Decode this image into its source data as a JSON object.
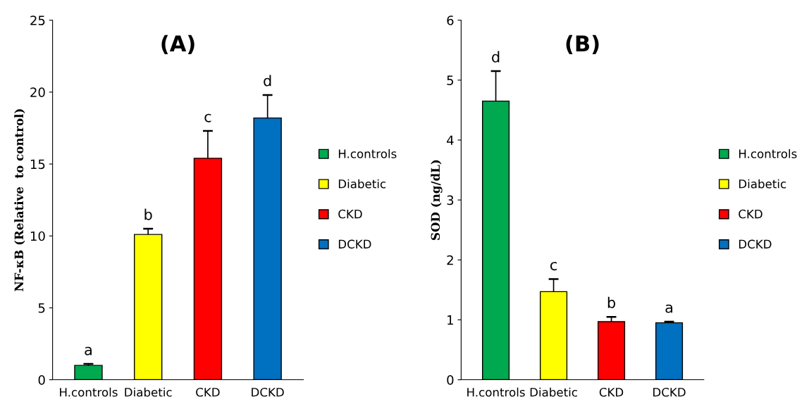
{
  "chart_data": [
    {
      "type": "bar",
      "stacked": true,
      "title": "(A)",
      "ylabel": "NF-κB (Relative  to control)",
      "categories": [
        "H.controls",
        "Diabetic",
        "CKD",
        "DCKD"
      ],
      "series": [
        {
          "name": "H.controls",
          "color": "#00a84f",
          "values": [
            1.0,
            null,
            null,
            null
          ],
          "errors": [
            0.1,
            null,
            null,
            null
          ]
        },
        {
          "name": "Diabetic",
          "color": "#ffff00",
          "values": [
            null,
            10.1,
            null,
            null
          ],
          "errors": [
            null,
            0.4,
            null,
            null
          ]
        },
        {
          "name": "CKD",
          "color": "#ff0000",
          "values": [
            null,
            null,
            15.4,
            null
          ],
          "errors": [
            null,
            null,
            1.9,
            null
          ]
        },
        {
          "name": "DCKD",
          "color": "#0070c0",
          "values": [
            null,
            null,
            null,
            18.2
          ],
          "errors": [
            null,
            null,
            null,
            1.6
          ]
        }
      ],
      "ylim": [
        0,
        25
      ],
      "yticks": [
        0,
        5,
        10,
        15,
        20,
        25
      ],
      "legend": "right",
      "annotations": [
        {
          "text": "a",
          "x": "H.controls",
          "y": 1.0
        },
        {
          "text": "b",
          "x": "Diabetic",
          "y": 10.1
        },
        {
          "text": "c",
          "x": "CKD",
          "y": 15.4
        },
        {
          "text": "d",
          "x": "DCKD",
          "y": 18.2
        }
      ]
    },
    {
      "type": "bar",
      "stacked": true,
      "title": "(B)",
      "ylabel": "SOD (ng/dL)",
      "categories": [
        "H.controls",
        "Diabetic",
        "CKD",
        "DCKD"
      ],
      "series": [
        {
          "name": "H.controls",
          "color": "#00a84f",
          "values": [
            4.65,
            null,
            null,
            null
          ],
          "errors": [
            0.5,
            null,
            null,
            null
          ]
        },
        {
          "name": "Diabetic",
          "color": "#ffff00",
          "values": [
            null,
            1.47,
            null,
            null
          ],
          "errors": [
            null,
            0.21,
            null,
            null
          ]
        },
        {
          "name": "CKD",
          "color": "#ff0000",
          "values": [
            null,
            null,
            0.97,
            null
          ],
          "errors": [
            null,
            null,
            0.08,
            null
          ]
        },
        {
          "name": "DCKD",
          "color": "#0070c0",
          "values": [
            null,
            null,
            null,
            0.95
          ],
          "errors": [
            null,
            null,
            null,
            0.02
          ]
        }
      ],
      "ylim": [
        0,
        6
      ],
      "yticks": [
        0,
        1,
        2,
        3,
        4,
        5,
        6
      ],
      "legend": "right",
      "annotations": [
        {
          "text": "d",
          "x": "H.controls",
          "y": 4.65
        },
        {
          "text": "c",
          "x": "Diabetic",
          "y": 1.47
        },
        {
          "text": "b",
          "x": "CKD",
          "y": 0.97
        },
        {
          "text": "a",
          "x": "DCKD",
          "y": 0.95
        }
      ]
    }
  ]
}
